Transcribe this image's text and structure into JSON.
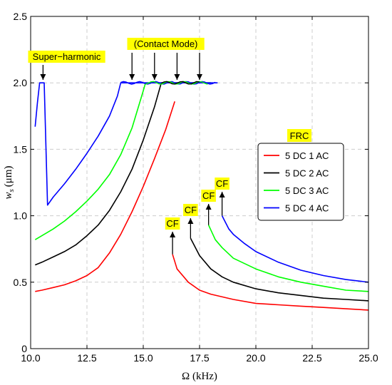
{
  "chart_data": {
    "type": "line",
    "xlabel": "Ω (kHz)",
    "ylabel_main": "w",
    "ylabel_sub": "s",
    "ylabel_unit": "(μm)",
    "xlim": [
      10.0,
      25.0
    ],
    "ylim": [
      0,
      2.5
    ],
    "x_ticks": [
      "10.0",
      "12.5",
      "15.0",
      "17.5",
      "20.0",
      "22.5",
      "25.0"
    ],
    "y_ticks": [
      "0",
      "0.5",
      "1.0",
      "1.5",
      "2.0",
      "2.5"
    ],
    "grid": true,
    "legend": {
      "title": "FRC",
      "placement": "right",
      "entries": [
        "5 DC 1 AC",
        "5 DC 2 AC",
        "5 DC 3 AC",
        "5 DC 4 AC"
      ]
    },
    "annotations": {
      "super_harmonic": "Super−harmonic",
      "contact_mode": "(Contact Mode)",
      "cf": "CF"
    },
    "series": [
      {
        "name": "5 DC 1 AC",
        "color": "#ff0000",
        "segments": [
          [
            [
              10.2,
              0.43
            ],
            [
              10.5,
              0.44
            ],
            [
              11,
              0.46
            ],
            [
              11.5,
              0.48
            ],
            [
              12,
              0.51
            ],
            [
              12.5,
              0.55
            ],
            [
              13,
              0.61
            ],
            [
              13.5,
              0.72
            ],
            [
              14,
              0.86
            ],
            [
              14.5,
              1.03
            ],
            [
              15,
              1.22
            ],
            [
              15.5,
              1.43
            ],
            [
              16,
              1.65
            ],
            [
              16.4,
              1.86
            ]
          ],
          [
            [
              16.3,
              0.71
            ],
            [
              16.5,
              0.6
            ],
            [
              17,
              0.5
            ],
            [
              17.5,
              0.44
            ],
            [
              18,
              0.41
            ],
            [
              19,
              0.37
            ],
            [
              20,
              0.34
            ],
            [
              21,
              0.33
            ],
            [
              22,
              0.32
            ],
            [
              23,
              0.31
            ],
            [
              24,
              0.3
            ],
            [
              25,
              0.29
            ]
          ]
        ]
      },
      {
        "name": "5 DC 2 AC",
        "color": "#000000",
        "segments": [
          [
            [
              10.2,
              0.63
            ],
            [
              10.5,
              0.65
            ],
            [
              11,
              0.69
            ],
            [
              11.5,
              0.73
            ],
            [
              12,
              0.78
            ],
            [
              12.5,
              0.85
            ],
            [
              13,
              0.93
            ],
            [
              13.5,
              1.04
            ],
            [
              14,
              1.18
            ],
            [
              14.5,
              1.35
            ],
            [
              15,
              1.57
            ],
            [
              15.5,
              1.82
            ],
            [
              15.8,
              2.0
            ],
            [
              16,
              2.0
            ],
            [
              17,
              2.0
            ],
            [
              18,
              2.0
            ]
          ],
          [
            [
              17.1,
              0.83
            ],
            [
              17.5,
              0.7
            ],
            [
              18,
              0.6
            ],
            [
              18.5,
              0.54
            ],
            [
              19,
              0.5
            ],
            [
              20,
              0.45
            ],
            [
              21,
              0.42
            ],
            [
              22,
              0.4
            ],
            [
              23,
              0.38
            ],
            [
              24,
              0.37
            ],
            [
              25,
              0.36
            ]
          ]
        ]
      },
      {
        "name": "5 DC 3 AC",
        "color": "#00ff00",
        "segments": [
          [
            [
              10.2,
              0.82
            ],
            [
              10.5,
              0.85
            ],
            [
              11,
              0.9
            ],
            [
              11.5,
              0.96
            ],
            [
              12,
              1.03
            ],
            [
              12.5,
              1.11
            ],
            [
              13,
              1.2
            ],
            [
              13.5,
              1.31
            ],
            [
              14,
              1.46
            ],
            [
              14.5,
              1.66
            ],
            [
              15,
              1.94
            ],
            [
              15.1,
              2.0
            ],
            [
              16,
              2.0
            ],
            [
              17,
              2.0
            ],
            [
              18,
              2.0
            ]
          ],
          [
            [
              17.9,
              0.93
            ],
            [
              18.2,
              0.82
            ],
            [
              18.5,
              0.76
            ],
            [
              19,
              0.68
            ],
            [
              20,
              0.6
            ],
            [
              21,
              0.54
            ],
            [
              22,
              0.5
            ],
            [
              23,
              0.47
            ],
            [
              24,
              0.44
            ],
            [
              25,
              0.43
            ]
          ]
        ]
      },
      {
        "name": "5 DC 4 AC",
        "color": "#0000ff",
        "segments": [
          [
            [
              10.2,
              1.67
            ],
            [
              10.3,
              1.85
            ],
            [
              10.4,
              2.0
            ],
            [
              10.6,
              2.0
            ],
            [
              10.75,
              1.08
            ],
            [
              11,
              1.14
            ],
            [
              11.5,
              1.24
            ],
            [
              12,
              1.35
            ],
            [
              12.5,
              1.47
            ],
            [
              13,
              1.6
            ],
            [
              13.5,
              1.75
            ],
            [
              13.85,
              1.9
            ],
            [
              14,
              2.0
            ],
            [
              15,
              2.0
            ],
            [
              16,
              2.0
            ],
            [
              17,
              2.0
            ],
            [
              18,
              2.0
            ],
            [
              18.3,
              2.0
            ]
          ],
          [
            [
              18.5,
              1.0
            ],
            [
              18.8,
              0.9
            ],
            [
              19,
              0.86
            ],
            [
              19.5,
              0.79
            ],
            [
              20,
              0.73
            ],
            [
              21,
              0.65
            ],
            [
              22,
              0.59
            ],
            [
              23,
              0.55
            ],
            [
              24,
              0.52
            ],
            [
              25,
              0.5
            ]
          ]
        ]
      }
    ]
  }
}
